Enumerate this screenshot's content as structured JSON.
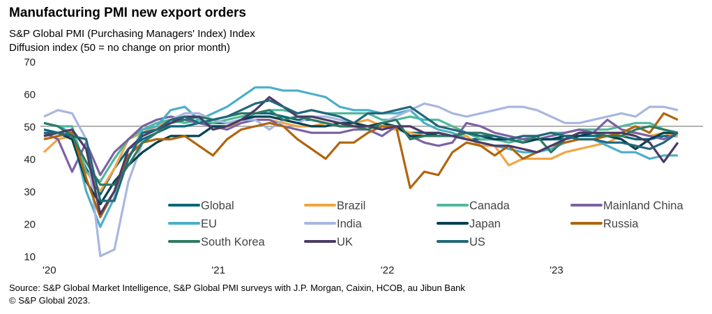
{
  "chart_data": {
    "type": "line",
    "title": "Manufacturing PMI new export orders",
    "subtitle": [
      "S&P Global PMI (Purchasing Managers' Index) Index",
      "Diffusion index (50 = no change on prior month)"
    ],
    "xlabel": "",
    "ylabel": "",
    "x_start": "2020-01",
    "frequency": "monthly",
    "x_tick_labels": [
      "'20",
      "'21",
      "'22",
      "'23"
    ],
    "y_tick_labels": [
      "10",
      "20",
      "30",
      "40",
      "50",
      "60",
      "70"
    ],
    "ylim": [
      10,
      70
    ],
    "reference_line": 50,
    "grid": false,
    "legend": "bottom-inside",
    "series": [
      {
        "name": "Global",
        "color": "#05677e",
        "values": [
          49,
          48,
          46,
          37,
          29,
          37,
          43,
          46,
          48,
          50,
          50,
          51,
          51,
          51,
          52,
          54,
          54,
          53,
          52,
          52,
          51,
          50,
          50,
          50,
          50,
          49,
          48,
          48,
          47,
          47,
          46,
          46,
          46,
          46,
          45,
          46,
          46,
          46,
          47,
          47,
          47,
          47,
          46,
          46,
          47,
          47
        ]
      },
      {
        "name": "Brazil",
        "color": "#f2a541",
        "values": [
          42,
          46,
          47,
          36,
          30,
          37,
          46,
          48,
          50,
          52,
          52,
          51,
          50,
          50,
          51,
          52,
          52,
          51,
          50,
          50,
          51,
          50,
          51,
          52,
          50,
          49,
          48,
          47,
          47,
          47,
          47,
          44,
          44,
          38,
          40,
          40,
          40,
          42,
          43,
          44,
          45,
          47,
          48,
          47,
          48,
          47
        ]
      },
      {
        "name": "Canada",
        "color": "#50b99b",
        "values": [
          51,
          50,
          50,
          36,
          33,
          40,
          46,
          49,
          51,
          52,
          51,
          52,
          51,
          52,
          53,
          54,
          55,
          55,
          54,
          55,
          54,
          54,
          54,
          54,
          52,
          52,
          53,
          52,
          52,
          50,
          48,
          46,
          46,
          45,
          46,
          47,
          48,
          48,
          49,
          49,
          49,
          50,
          51,
          51,
          49,
          48
        ]
      },
      {
        "name": "Mainland China",
        "color": "#7b62a3",
        "values": [
          48,
          46,
          36,
          45,
          35,
          42,
          46,
          50,
          52,
          53,
          52,
          51,
          50,
          49,
          51,
          52,
          52,
          50,
          49,
          48,
          48,
          48,
          49,
          49,
          47,
          50,
          47,
          45,
          44,
          45,
          51,
          50,
          48,
          47,
          46,
          46,
          47,
          48,
          49,
          48,
          52,
          49,
          48,
          47,
          46,
          48
        ]
      },
      {
        "name": "EU",
        "color": "#4aafc9",
        "values": [
          51,
          50,
          48,
          30,
          19,
          28,
          40,
          49,
          50,
          55,
          56,
          52,
          54,
          56,
          59,
          62,
          62,
          61,
          61,
          60,
          59,
          56,
          55,
          55,
          54,
          54,
          55,
          51,
          49,
          48,
          46,
          45,
          44,
          43,
          42,
          42,
          43,
          45,
          46,
          46,
          44,
          42,
          42,
          40,
          41,
          41
        ]
      },
      {
        "name": "India",
        "color": "#a9b6e0",
        "values": [
          53,
          55,
          54,
          46,
          10,
          12,
          33,
          45,
          48,
          52,
          54,
          54,
          52,
          51,
          52,
          52,
          49,
          52,
          51,
          53,
          53,
          52,
          51,
          50,
          51,
          53,
          55,
          57,
          56,
          54,
          53,
          54,
          55,
          56,
          56,
          55,
          53,
          51,
          51,
          52,
          53,
          54,
          53,
          56,
          56,
          55
        ]
      },
      {
        "name": "Japan",
        "color": "#033f52",
        "values": [
          47,
          48,
          46,
          33,
          26,
          33,
          38,
          42,
          45,
          47,
          47,
          47,
          50,
          50,
          52,
          53,
          53,
          52,
          51,
          50,
          50,
          51,
          51,
          50,
          51,
          50,
          47,
          47,
          48,
          47,
          48,
          47,
          46,
          46,
          45,
          46,
          46,
          47,
          47,
          48,
          47,
          46,
          43,
          46,
          48,
          48
        ]
      },
      {
        "name": "Russia",
        "color": "#b0650d",
        "values": [
          46,
          47,
          48,
          34,
          22,
          30,
          41,
          45,
          46,
          46,
          47,
          44,
          41,
          46,
          49,
          50,
          51,
          50,
          46,
          43,
          40,
          45,
          45,
          48,
          50,
          50,
          31,
          36,
          35,
          42,
          45,
          44,
          41,
          44,
          40,
          42,
          44,
          45,
          46,
          46,
          47,
          48,
          50,
          48,
          54,
          52
        ]
      },
      {
        "name": "South Korea",
        "color": "#2d7a63",
        "values": [
          51,
          50,
          47,
          39,
          32,
          32,
          38,
          45,
          48,
          51,
          52,
          53,
          52,
          53,
          54,
          54,
          55,
          52,
          53,
          52,
          51,
          50,
          50,
          49,
          51,
          52,
          46,
          47,
          47,
          47,
          48,
          48,
          47,
          46,
          45,
          47,
          42,
          46,
          48,
          48,
          47,
          47,
          49,
          50,
          49,
          48
        ]
      },
      {
        "name": "UK",
        "color": "#4b3b64",
        "values": [
          47,
          48,
          49,
          43,
          23,
          30,
          43,
          47,
          49,
          51,
          53,
          53,
          49,
          50,
          52,
          55,
          59,
          56,
          53,
          53,
          52,
          51,
          50,
          50,
          49,
          50,
          50,
          48,
          48,
          47,
          46,
          45,
          44,
          44,
          43,
          42,
          44,
          46,
          48,
          48,
          48,
          48,
          47,
          45,
          39,
          45
        ]
      },
      {
        "name": "US",
        "color": "#22677a",
        "values": [
          48,
          48,
          47,
          46,
          27,
          27,
          40,
          48,
          49,
          52,
          53,
          51,
          52,
          53,
          55,
          57,
          58,
          56,
          54,
          55,
          54,
          53,
          51,
          54,
          54,
          55,
          56,
          53,
          50,
          49,
          48,
          47,
          47,
          46,
          47,
          47,
          48,
          47,
          46,
          46,
          45,
          45,
          44,
          43,
          45,
          48
        ]
      }
    ],
    "source": "Source: S&P Global Market Intelligence, S&P Global PMI surveys with J.P. Morgan, Caixin, HCOB, au Jibun Bank",
    "copyright": "© S&P Global 2023."
  }
}
